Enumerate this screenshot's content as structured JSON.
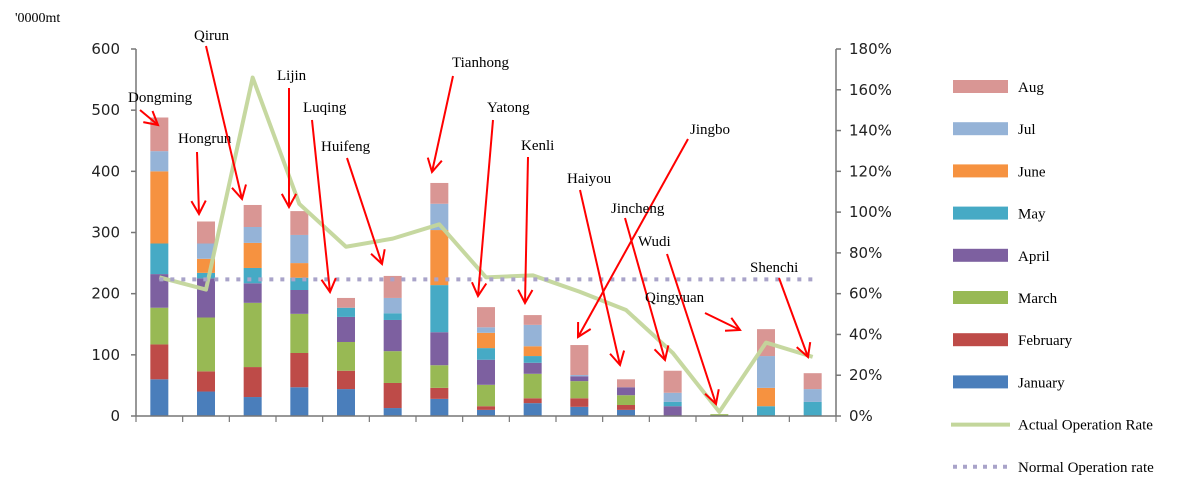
{
  "chart_data": {
    "type": "bar",
    "subtype": "stacked bar with secondary-axis lines",
    "title": "",
    "ylabel": "'0000mt",
    "y2label": "",
    "ylim": [
      0,
      600
    ],
    "y2lim": [
      0,
      1.8
    ],
    "yticks": [
      "0",
      "100",
      "200",
      "300",
      "400",
      "500",
      "600"
    ],
    "y2ticks": [
      "0%",
      "20%",
      "40%",
      "60%",
      "80%",
      "100%",
      "120%",
      "140%",
      "160%",
      "180%"
    ],
    "grid": false,
    "legend_position": "right",
    "categories": [
      "Dongming",
      "Hongrun",
      "Qirun",
      "Lijin",
      "Luqing",
      "Huifeng",
      "Tianhong",
      "Yatong",
      "Kenli",
      "Haiyou",
      "Jingbo",
      "Jincheng",
      "Wudi",
      "Qingyuan",
      "Shenchi"
    ],
    "series": [
      {
        "name": "January",
        "color": "#4a7ebb",
        "values": [
          60,
          40,
          31,
          47,
          44,
          13,
          28,
          10,
          21,
          15,
          10,
          0,
          0,
          0,
          0
        ]
      },
      {
        "name": "February",
        "color": "#be4b48",
        "values": [
          57,
          33,
          49,
          56,
          30,
          41,
          18,
          6,
          8,
          14,
          8,
          0,
          0,
          0,
          0
        ]
      },
      {
        "name": "March",
        "color": "#98b954",
        "values": [
          60,
          88,
          105,
          64,
          47,
          52,
          37,
          35,
          40,
          28,
          16,
          0,
          3,
          0,
          0
        ]
      },
      {
        "name": "April",
        "color": "#7d60a0",
        "values": [
          55,
          64,
          32,
          39,
          41,
          51,
          54,
          41,
          18,
          8,
          13,
          16,
          0,
          0,
          0
        ]
      },
      {
        "name": "May",
        "color": "#46aac5",
        "values": [
          50,
          9,
          25,
          20,
          15,
          11,
          77,
          19,
          11,
          0,
          0,
          7,
          0,
          16,
          23
        ]
      },
      {
        "name": "June",
        "color": "#f69240",
        "values": [
          118,
          23,
          41,
          24,
          0,
          0,
          90,
          25,
          16,
          0,
          0,
          0,
          0,
          30,
          0
        ]
      },
      {
        "name": "Jul",
        "color": "#95b3d7",
        "values": [
          33,
          25,
          26,
          46,
          0,
          25,
          43,
          9,
          35,
          2,
          0,
          15,
          0,
          52,
          21
        ]
      },
      {
        "name": "Aug",
        "color": "#d99694",
        "values": [
          55,
          36,
          36,
          39,
          16,
          36,
          34,
          33,
          16,
          49,
          13,
          36,
          0,
          44,
          26
        ]
      }
    ],
    "lines": [
      {
        "name": "Actual Operation Rate",
        "axis": "right",
        "color": "#c3d69b",
        "style": "solid",
        "values": [
          0.68,
          0.62,
          1.66,
          1.04,
          0.83,
          0.87,
          0.94,
          0.68,
          0.69,
          0.61,
          0.52,
          0.31,
          0.02,
          0.36,
          0.29
        ]
      },
      {
        "name": "Normal Operation rate",
        "axis": "right",
        "color": "#a9a3c9",
        "style": "dotted",
        "values": [
          0.67,
          0.67,
          0.67,
          0.67,
          0.67,
          0.67,
          0.67,
          0.67,
          0.67,
          0.67,
          0.67,
          0.67,
          0.67,
          0.67,
          0.67
        ]
      }
    ],
    "legend": [
      "Aug",
      "Jul",
      "June",
      "May",
      "April",
      "March",
      "February",
      "January",
      "Actual Operation Rate",
      "Normal Operation rate"
    ],
    "annotations": [
      {
        "text": "Dongming",
        "target": "Dongming"
      },
      {
        "text": "Hongrun",
        "target": "Hongrun"
      },
      {
        "text": "Qirun",
        "target": "Qirun"
      },
      {
        "text": "Lijin",
        "target": "Lijin"
      },
      {
        "text": "Luqing",
        "target": "Luqing"
      },
      {
        "text": "Huifeng",
        "target": "Huifeng"
      },
      {
        "text": "Tianhong",
        "target": "Tianhong"
      },
      {
        "text": "Yatong",
        "target": "Yatong"
      },
      {
        "text": "Kenli",
        "target": "Kenli"
      },
      {
        "text": "Haiyou",
        "target": "Haiyou"
      },
      {
        "text": "Jingbo",
        "target": "Jingbo"
      },
      {
        "text": "Jincheng",
        "target": "Jincheng"
      },
      {
        "text": "Wudi",
        "target": "Wudi"
      },
      {
        "text": "Qingyuan",
        "target": "Qingyuan"
      },
      {
        "text": "Shenchi",
        "target": "Shenchi"
      }
    ],
    "annotation_color": "#ff0000"
  }
}
